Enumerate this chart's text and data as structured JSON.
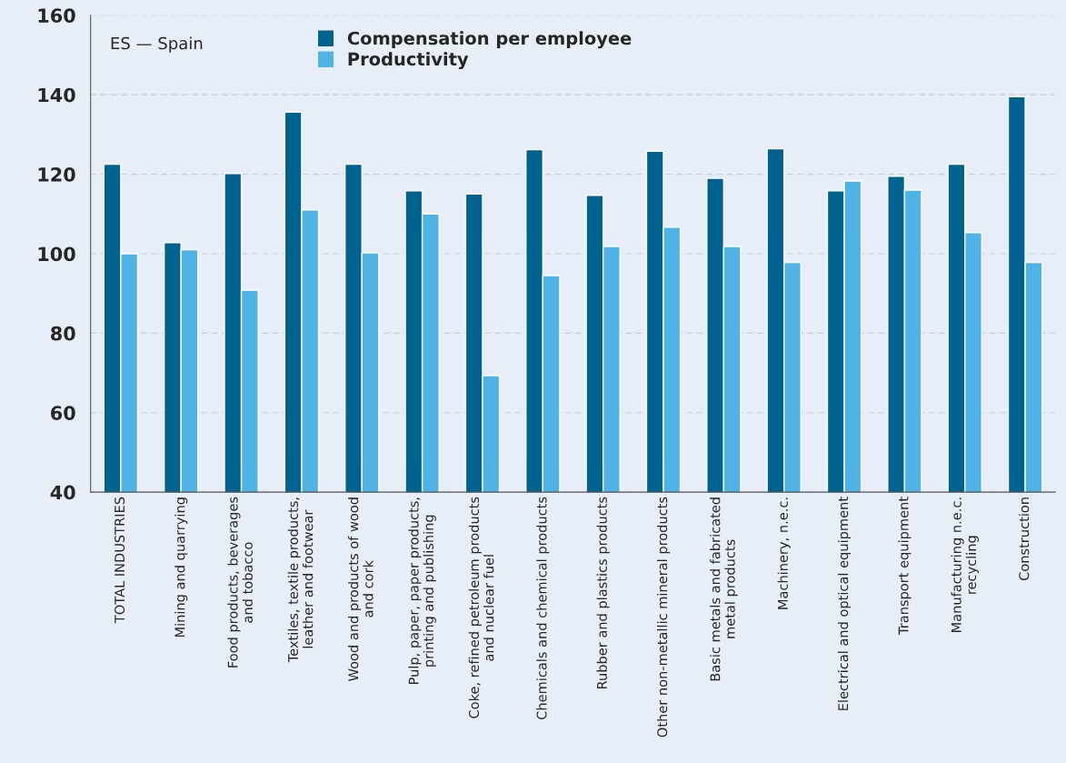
{
  "chart_data": {
    "type": "bar",
    "annotations": [
      "ES — Spain"
    ],
    "categories": [
      "TOTAL INDUSTRIES",
      "Mining and quarrying",
      "Food products, beverages\nand tobacco",
      "Textiles, textile products,\nleather and footwear",
      "Wood and products of wood\nand cork",
      "Pulp, paper, paper products,\nprinting and publishing",
      "Coke, refined petroleum products\nand nuclear fuel",
      "Chemicals and chemical products",
      "Rubber and plastics products",
      "Other non-metallic mineral products",
      "Basic metals and fabricated\nmetal products",
      "Machinery, n.e.c.",
      "Electrical and optical equipment",
      "Transport equipment",
      "Manufacturing n.e.c.\nrecycling",
      "Construction"
    ],
    "series": [
      {
        "name": "Compensation per employee",
        "color": "#00628f",
        "values": [
          122.5,
          102.8,
          120.2,
          135.6,
          122.5,
          115.8,
          115,
          126.2,
          114.7,
          125.8,
          119,
          126.4,
          115.8,
          119.5,
          122.5,
          139.5
        ]
      },
      {
        "name": "Productivity",
        "color": "#4fb3e6",
        "values": [
          100,
          101,
          90.8,
          111,
          100.2,
          110,
          69.3,
          94.5,
          101.8,
          106.7,
          101.8,
          97.8,
          118.3,
          116,
          105.3,
          97.8
        ]
      }
    ],
    "ylim": [
      40,
      160
    ],
    "yticks": [
      40,
      60,
      80,
      100,
      120,
      140,
      160
    ],
    "grid": "y",
    "legend": "top"
  }
}
